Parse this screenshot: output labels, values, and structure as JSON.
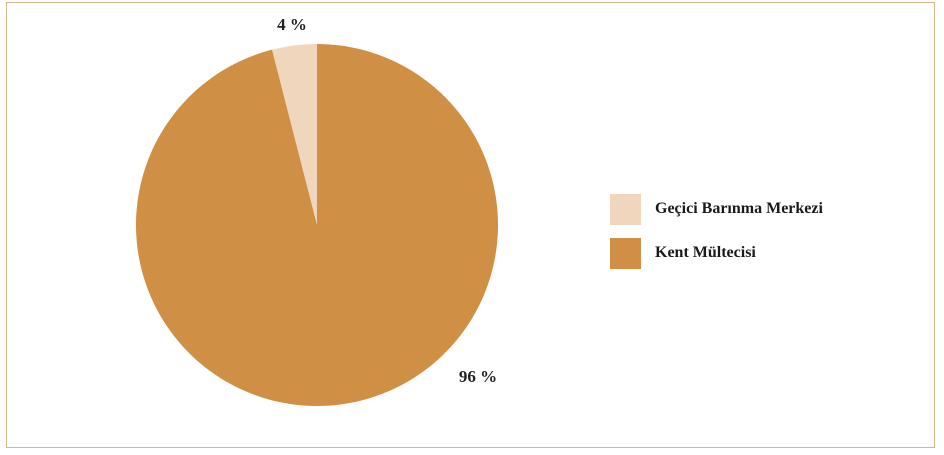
{
  "chart_data": {
    "type": "pie",
    "title": "",
    "categories": [
      "Geçici Barınma Merkezi",
      "Kent Mültecisi"
    ],
    "values": [
      4,
      96
    ],
    "value_labels": [
      "4 %",
      "96 %"
    ],
    "colors": [
      "#f0d6bc",
      "#cf8f45"
    ],
    "legend_position": "right",
    "start_angle": "12 o'clock, counter-clockwise for first slice"
  },
  "legend": {
    "items": [
      {
        "label": "Geçici Barınma Merkezi",
        "color": "#f0d6bc"
      },
      {
        "label": "Kent Mültecisi",
        "color": "#cf8f45"
      }
    ]
  },
  "frame": {
    "border_color": "#d9b68a"
  }
}
